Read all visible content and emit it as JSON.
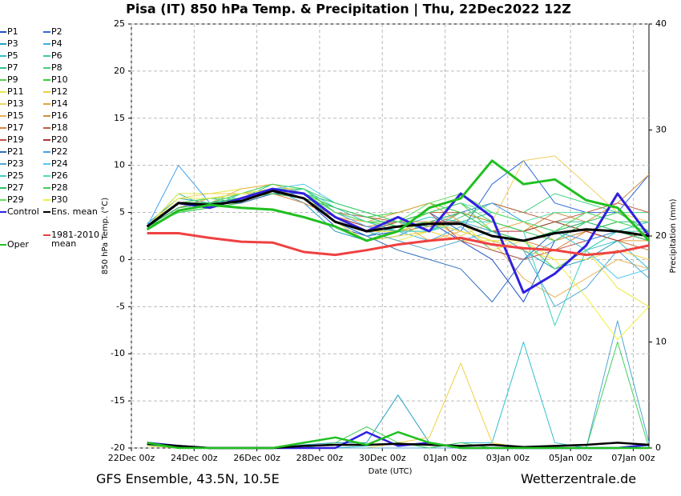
{
  "chart_data": {
    "type": "line",
    "title": "Pisa  (IT)  850 hPa Temp. & Precipitation | Thu, 22Dec2022 12Z",
    "source": "GFS Ensemble, 43.5N, 10.5E",
    "credit": "Wetterzentrale.de",
    "xlabel": "Date (UTC)",
    "ylabel": "850 hPa Temp. (°C)",
    "y2label": "Precipitation (mm)",
    "x": [
      12,
      36,
      60,
      84,
      108,
      132,
      156,
      180,
      204,
      228,
      252,
      276,
      300,
      324,
      348,
      372,
      396
    ],
    "xlim": [
      0,
      396
    ],
    "xticks": [
      {
        "value": 0,
        "label": "22Dec 00z"
      },
      {
        "value": 48,
        "label": "24Dec 00z"
      },
      {
        "value": 96,
        "label": "26Dec 00z"
      },
      {
        "value": 144,
        "label": "28Dec 00z"
      },
      {
        "value": 192,
        "label": "30Dec 00z"
      },
      {
        "value": 240,
        "label": "01Jan 00z"
      },
      {
        "value": 288,
        "label": "03Jan 00z"
      },
      {
        "value": 336,
        "label": "05Jan 00z"
      },
      {
        "value": 384,
        "label": "07Jan 00z"
      }
    ],
    "ylim": [
      -20,
      25
    ],
    "yticks": [
      -20,
      -15,
      -10,
      -5,
      0,
      5,
      10,
      15,
      20,
      25
    ],
    "y2lim": [
      0,
      40
    ],
    "y2ticks": [
      0,
      10,
      20,
      30,
      40
    ],
    "grid": true,
    "series": [
      {
        "name": "P1",
        "color": "#2050c8",
        "values": [
          3.5,
          5.5,
          6,
          6.5,
          7.5,
          6.5,
          3.5,
          2.5,
          3,
          4,
          2,
          0,
          -4.5,
          2,
          3,
          4,
          3
        ]
      },
      {
        "name": "P2",
        "color": "#3068e0",
        "values": [
          3.5,
          6,
          5.5,
          6,
          7,
          7,
          4,
          3,
          4,
          5,
          3,
          8,
          10.5,
          6,
          5,
          5,
          9
        ]
      },
      {
        "name": "P3",
        "color": "#20a0c0",
        "values": [
          3.8,
          6.5,
          6,
          6.5,
          7.5,
          6,
          3,
          2,
          2.5,
          4,
          3,
          2,
          1,
          -1,
          0,
          2,
          1
        ],
        "precip": [
          0.3,
          0,
          0,
          0,
          0,
          0.3,
          0.5,
          0.5,
          5,
          0.5,
          0,
          0,
          0,
          0,
          0,
          0,
          0
        ]
      },
      {
        "name": "P4",
        "color": "#40b0e0",
        "values": [
          3.5,
          5,
          5.5,
          6.5,
          7,
          7.5,
          5,
          4,
          3,
          2,
          3.5,
          1,
          0,
          2,
          4,
          3,
          2
        ]
      },
      {
        "name": "P5",
        "color": "#30c0d0",
        "values": [
          3.5,
          7,
          5.5,
          7,
          7.5,
          6.5,
          4,
          2.5,
          3.5,
          4.5,
          4,
          3,
          2,
          3,
          1,
          2,
          -1
        ],
        "precip": [
          0.3,
          0,
          0,
          0,
          0,
          0,
          0,
          0.2,
          0.5,
          0,
          0.5,
          0.5,
          10,
          0.5,
          0,
          0,
          0
        ]
      },
      {
        "name": "P6",
        "color": "#40c8b0",
        "values": [
          3.5,
          6,
          6.5,
          6,
          7,
          7,
          5,
          4,
          4,
          3,
          5,
          4,
          3,
          4,
          4,
          3,
          3
        ]
      },
      {
        "name": "P7",
        "color": "#30c090",
        "values": [
          3.5,
          5.5,
          6,
          6.5,
          8,
          7,
          6,
          5,
          4,
          3.5,
          4,
          5,
          4,
          3,
          5,
          4,
          4
        ]
      },
      {
        "name": "P8",
        "color": "#40d080",
        "values": [
          3.5,
          6,
          6,
          6.5,
          7,
          6.5,
          4.5,
          3.5,
          3,
          3,
          4.5,
          6,
          5,
          7,
          6,
          5,
          5
        ]
      },
      {
        "name": "P9",
        "color": "#50d050",
        "values": [
          3.5,
          5.5,
          6.5,
          7,
          7.5,
          7.5,
          5,
          4,
          3.5,
          5,
          6,
          3,
          2,
          -1,
          1,
          3,
          4
        ]
      },
      {
        "name": "P10",
        "color": "#30d030",
        "values": [
          3.5,
          5,
          5.5,
          6,
          7,
          7,
          5.5,
          4.5,
          5,
          6,
          5,
          4,
          3,
          4,
          3,
          4,
          3
        ]
      },
      {
        "name": "P11",
        "color": "#e8e840",
        "values": [
          3.5,
          7,
          7,
          7.5,
          8,
          7,
          4,
          3,
          2,
          3,
          4,
          1,
          2,
          3,
          1,
          -3,
          -5
        ]
      },
      {
        "name": "P12",
        "color": "#f0d040",
        "values": [
          3.5,
          6,
          6,
          7,
          7.5,
          6.5,
          4,
          2,
          2.5,
          3,
          2,
          2,
          1,
          0,
          0,
          1,
          0
        ],
        "precip": [
          0.2,
          0,
          0,
          0,
          0,
          0,
          0,
          0,
          0.5,
          1,
          8,
          0.5,
          0,
          0,
          0,
          0,
          0
        ]
      },
      {
        "name": "P13",
        "color": "#f0d060",
        "values": [
          3.5,
          6.5,
          7,
          7,
          8,
          7,
          4,
          3,
          3,
          4,
          2.5,
          4,
          10.5,
          11,
          8,
          5,
          4
        ]
      },
      {
        "name": "P14",
        "color": "#e8a040",
        "values": [
          3.5,
          5.5,
          6.5,
          7,
          7,
          6.5,
          4.5,
          4,
          5,
          6,
          4,
          3,
          4,
          2,
          3,
          2,
          2
        ]
      },
      {
        "name": "P15",
        "color": "#e8b050",
        "values": [
          3.5,
          6,
          6,
          7.5,
          8,
          7,
          5,
          4,
          4,
          2,
          3,
          2,
          -2,
          -4,
          -2,
          0,
          -1
        ]
      },
      {
        "name": "P16",
        "color": "#d09040",
        "values": [
          3.5,
          6,
          5.5,
          6.5,
          7,
          6.5,
          4,
          3,
          3,
          3.5,
          5,
          4,
          3,
          5,
          4,
          6,
          9
        ]
      },
      {
        "name": "P17",
        "color": "#e08040",
        "values": [
          3.5,
          5.5,
          6,
          6,
          7,
          6,
          4.5,
          3.5,
          4,
          4,
          3,
          2,
          2,
          1,
          3,
          2,
          1
        ]
      },
      {
        "name": "P18",
        "color": "#c06040",
        "values": [
          3.5,
          6,
          6.5,
          7,
          7.5,
          7,
          5,
          4.5,
          4,
          5,
          5,
          6,
          5,
          4,
          5,
          6,
          5
        ]
      },
      {
        "name": "P19",
        "color": "#c05040",
        "values": [
          3.5,
          6,
          6,
          6.5,
          7.5,
          6.5,
          4,
          3,
          4,
          5,
          2,
          1,
          0,
          1,
          2,
          3,
          2
        ]
      },
      {
        "name": "P20",
        "color": "#b03030",
        "values": [
          3.5,
          5.5,
          6,
          6.5,
          7,
          7,
          4.5,
          3.5,
          3,
          4,
          4,
          3,
          3,
          4,
          3,
          2,
          3
        ]
      },
      {
        "name": "P21",
        "color": "#3070c0",
        "values": [
          3.5,
          6,
          6,
          6,
          7,
          7,
          4,
          2.5,
          1,
          0,
          -1,
          -4.5,
          0,
          3,
          4,
          3,
          2
        ]
      },
      {
        "name": "P22",
        "color": "#40a0f0",
        "values": [
          3.5,
          10,
          6,
          6.5,
          7.5,
          7,
          5,
          3.5,
          3,
          4,
          5,
          6,
          4,
          3,
          2,
          3,
          4
        ]
      },
      {
        "name": "P23",
        "color": "#50a8d0",
        "values": [
          3.5,
          6,
          6.5,
          7,
          7.5,
          7,
          4,
          3,
          2,
          1,
          2,
          3,
          1,
          -5,
          -3,
          1,
          -2
        ],
        "precip": [
          0.3,
          0,
          0,
          0,
          0,
          0,
          0,
          0,
          0,
          0,
          0,
          0,
          0,
          0,
          0,
          12,
          0.5
        ]
      },
      {
        "name": "P24",
        "color": "#50c8f0",
        "values": [
          3.5,
          5.5,
          6,
          7,
          7.5,
          8,
          6,
          5,
          4,
          3,
          4,
          3,
          2,
          3,
          1,
          -2,
          -1
        ]
      },
      {
        "name": "P25",
        "color": "#40d0c0",
        "values": [
          3.5,
          6,
          6,
          6.5,
          7,
          7.5,
          5.5,
          4,
          3,
          3,
          4,
          4,
          3,
          -7,
          1,
          3,
          4
        ]
      },
      {
        "name": "P26",
        "color": "#50e0b0",
        "values": [
          3.5,
          6,
          6.5,
          7,
          7.5,
          7,
          5,
          4,
          4,
          5,
          6,
          5,
          4,
          5,
          5,
          4,
          3
        ]
      },
      {
        "name": "P27",
        "color": "#30c060",
        "values": [
          3.5,
          5.5,
          6,
          6.5,
          7,
          6.5,
          5.5,
          4.5,
          3.5,
          4,
          5,
          3,
          2,
          3,
          4,
          5,
          3
        ]
      },
      {
        "name": "P28",
        "color": "#40d060",
        "values": [
          3.5,
          6,
          6,
          7,
          8,
          7.5,
          6,
          5,
          4,
          5,
          6,
          4,
          3,
          2,
          4,
          3,
          2
        ],
        "precip": [
          0.3,
          0,
          0,
          0,
          0,
          0,
          0.5,
          2,
          0.5,
          0,
          0.5,
          0,
          0,
          0,
          0,
          10,
          0
        ]
      },
      {
        "name": "P29",
        "color": "#60e060",
        "values": [
          3.5,
          6,
          6.5,
          6.5,
          7.5,
          7,
          5,
          4,
          4,
          6,
          7,
          5,
          4,
          3,
          5,
          4,
          3
        ]
      },
      {
        "name": "P30",
        "color": "#f0f040",
        "values": [
          3.5,
          6.5,
          6.5,
          7,
          7.5,
          7,
          4.5,
          3,
          3,
          4,
          3,
          2,
          2,
          0,
          -4,
          -8.5,
          -5
        ]
      },
      {
        "name": "Control",
        "color": "#3020e0",
        "width": 3,
        "values": [
          3.5,
          6,
          5.5,
          6.5,
          7.5,
          7,
          4.5,
          3,
          4.5,
          3,
          7,
          4.5,
          -3.5,
          -1.5,
          1.5,
          7,
          2.5
        ],
        "precip": [
          0.5,
          0.2,
          0,
          0,
          0,
          0,
          0,
          1.5,
          0.2,
          0.5,
          0,
          0,
          0,
          0,
          0,
          0,
          0.3
        ]
      },
      {
        "name": "Ens. mean",
        "color": "#000000",
        "width": 3,
        "values": [
          3.5,
          6,
          5.8,
          6.2,
          7.3,
          6.5,
          4,
          3,
          3.5,
          3.8,
          3.8,
          2.5,
          2,
          2.8,
          3.2,
          3,
          2.5
        ],
        "precip": [
          0.4,
          0.2,
          0,
          0,
          0,
          0.2,
          0.3,
          0.3,
          0.4,
          0.3,
          0.2,
          0.3,
          0.1,
          0.2,
          0.3,
          0.5,
          0.3
        ]
      },
      {
        "name": "Oper",
        "color": "#20c020",
        "width": 3,
        "values": [
          3.2,
          5.2,
          5.8,
          5.5,
          5.3,
          4.5,
          3.5,
          2,
          3,
          5.5,
          6.5,
          10.5,
          8,
          8.5,
          6.3,
          5.5,
          2
        ],
        "precip": [
          0.5,
          0,
          0,
          0,
          0,
          0.5,
          1,
          0.3,
          1.5,
          0.5,
          0,
          0,
          0,
          0,
          0,
          0,
          0
        ]
      },
      {
        "name": "1981-2010 mean",
        "color": "#f04040",
        "width": 3,
        "values": [
          2.8,
          2.8,
          2.3,
          1.9,
          1.8,
          0.8,
          0.5,
          1,
          1.6,
          2,
          2.3,
          1.6,
          1.2,
          1,
          0.5,
          0.8,
          1.5
        ]
      }
    ]
  }
}
